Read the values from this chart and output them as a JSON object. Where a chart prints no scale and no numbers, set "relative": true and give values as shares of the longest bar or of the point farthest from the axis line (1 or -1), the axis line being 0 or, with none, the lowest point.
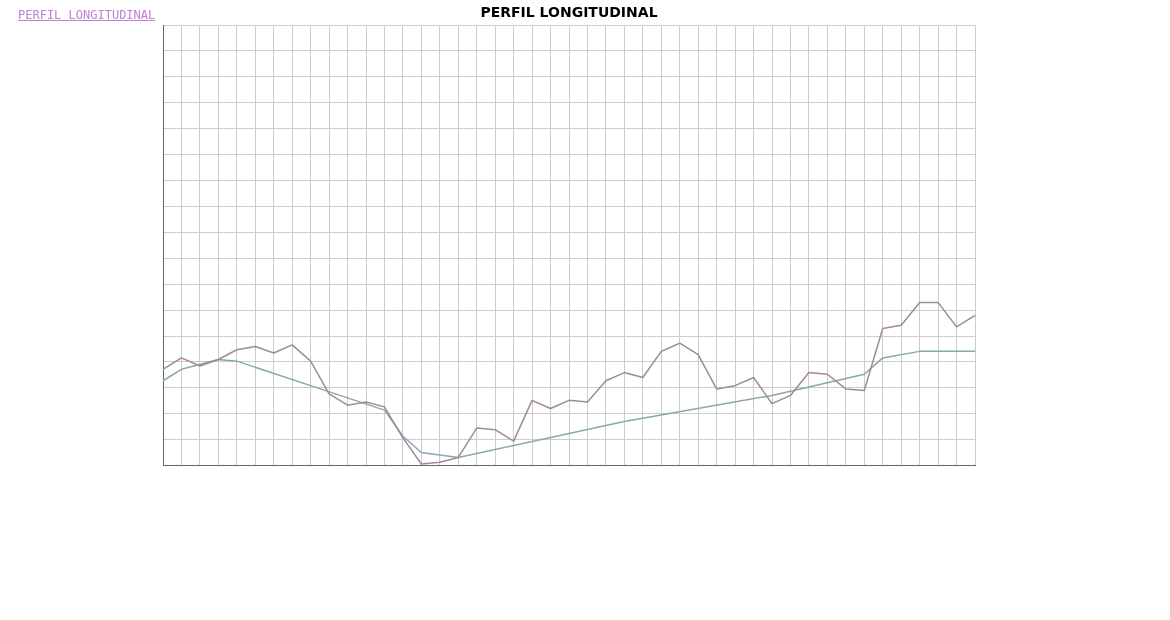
{
  "chart_data": {
    "type": "line",
    "title": "PERFIL LONGITUDINAL",
    "annotations": [
      "PERFIL LONGITUDINAL"
    ],
    "relative": true,
    "grid": true,
    "categories": [
      null,
      null,
      null,
      null,
      null,
      null,
      null,
      null,
      null,
      null,
      null,
      null,
      null,
      null,
      null,
      null,
      null,
      null,
      null,
      null,
      null,
      null,
      null,
      null,
      null,
      null,
      null,
      null,
      null,
      null,
      null,
      null,
      null,
      null,
      null,
      null,
      null,
      null,
      null,
      null,
      null,
      null,
      null,
      null,
      null
    ],
    "series": [
      {
        "color": "#a08a98",
        "values": [
          0.59,
          0.66,
          0.61,
          0.65,
          0.71,
          0.73,
          0.69,
          0.74,
          0.64,
          0.44,
          0.37,
          0.39,
          0.36,
          0.17,
          0.01,
          0.02,
          0.05,
          0.23,
          0.22,
          0.15,
          0.4,
          0.35,
          0.4,
          0.39,
          0.52,
          0.57,
          0.54,
          0.7,
          0.75,
          0.68,
          0.47,
          0.49,
          0.54,
          0.38,
          0.43,
          0.57,
          0.56,
          0.47,
          0.46,
          0.84,
          0.86,
          1,
          1,
          0.85,
          0.92
        ]
      },
      {
        "color": "#8aa6b0",
        "values": [
          0.52,
          0.59,
          null,
          0.65,
          0.64,
          null,
          null,
          null,
          0.49,
          null,
          null,
          null,
          0.34,
          0.18,
          0.08,
          null,
          0.05,
          null,
          null,
          null,
          null,
          null,
          null,
          null,
          null,
          0.27,
          null,
          null,
          null,
          null,
          null,
          null,
          null,
          0.43,
          null,
          null,
          null,
          null,
          0.56,
          0.66,
          null,
          0.7,
          null,
          null,
          0.7
        ]
      }
    ]
  }
}
